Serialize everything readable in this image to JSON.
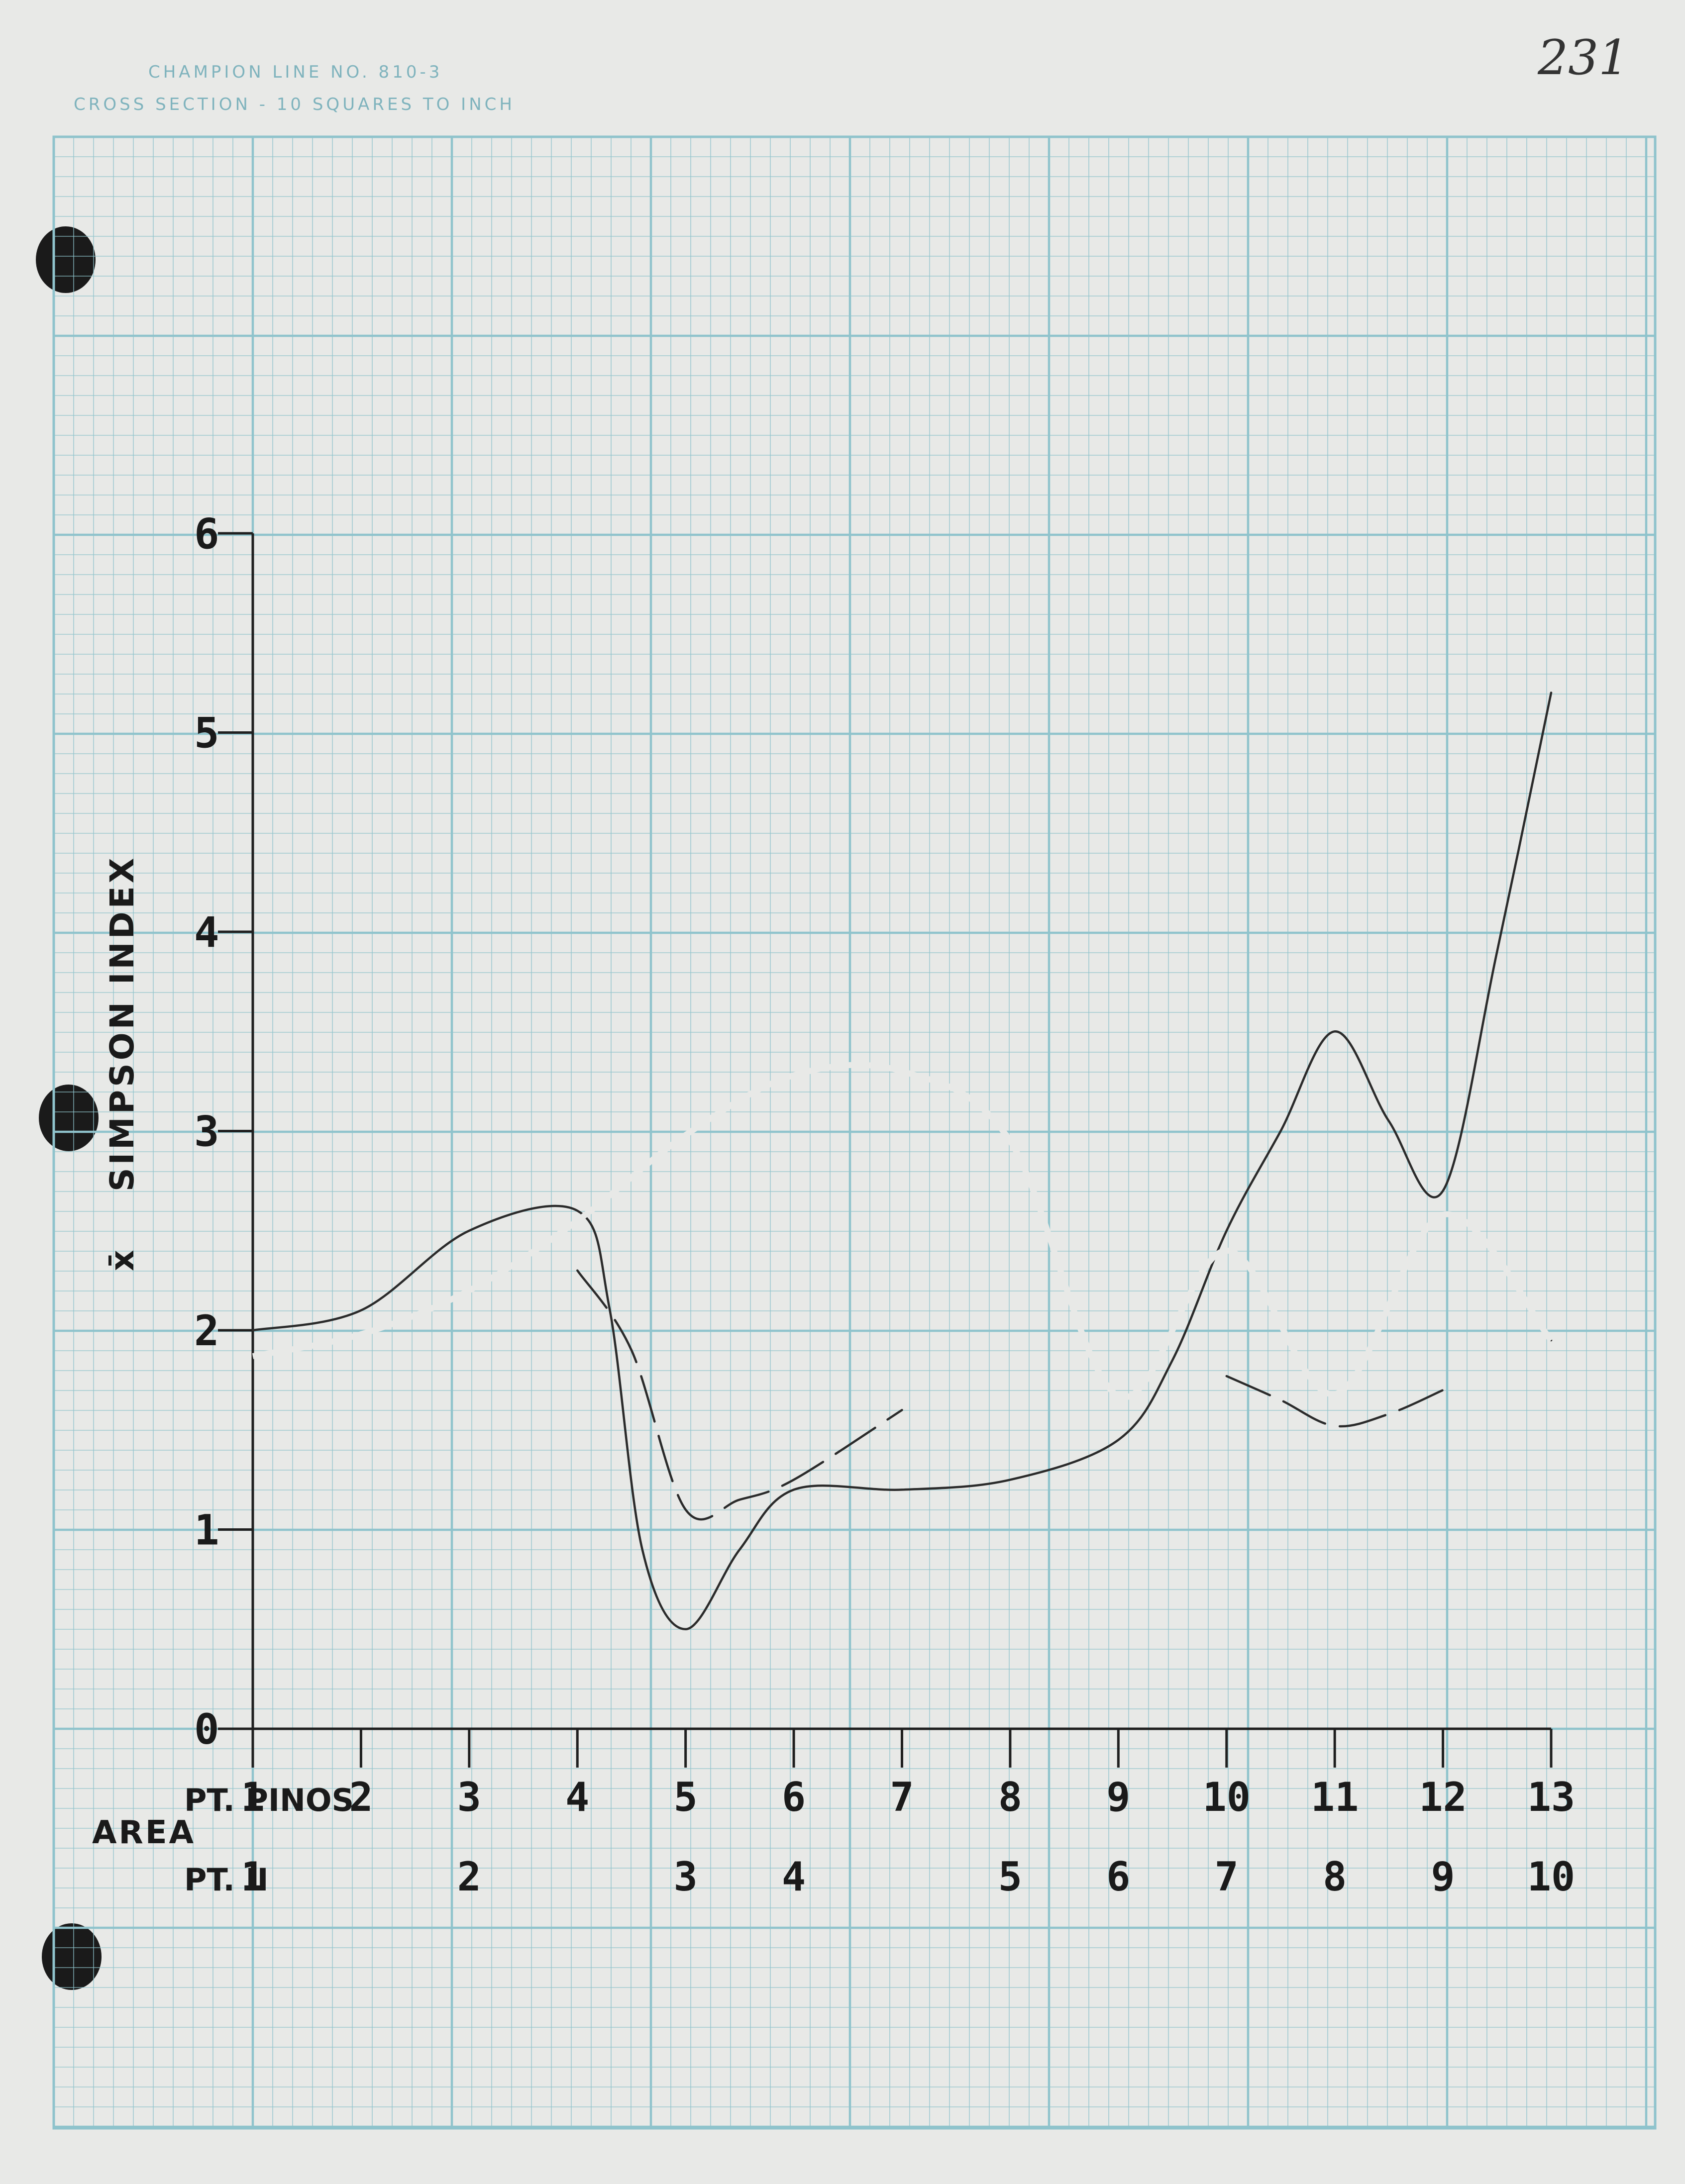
{
  "paper": {
    "header_line1": "CHAMPION LINE NO. 810-3",
    "header_line2": "CROSS SECTION - 10 SQUARES TO INCH",
    "page_number": "231"
  },
  "colors": {
    "grid": "#8fc3cc",
    "ink": "#1f1f1f",
    "paper": "#e8e9e7"
  },
  "chart_data": {
    "type": "line",
    "ylabel": "x̄ SIMPSON INDEX",
    "ylabel_bar": "x̄",
    "ylabel_text": "SIMPSON INDEX",
    "ylim": [
      0,
      6
    ],
    "yticks": [
      "0",
      "1",
      "2",
      "3",
      "4",
      "5",
      "6"
    ],
    "xlim": [
      0,
      13
    ],
    "xlabel": "AREA",
    "x_axis_rows": [
      {
        "label": "PT. PINOS",
        "ticks": [
          {
            "x": 1,
            "label": "1"
          },
          {
            "x": 2,
            "label": "2"
          },
          {
            "x": 3,
            "label": "3"
          },
          {
            "x": 4,
            "label": "4"
          },
          {
            "x": 5,
            "label": "5"
          },
          {
            "x": 6,
            "label": "6"
          },
          {
            "x": 7,
            "label": "7"
          },
          {
            "x": 8,
            "label": "8"
          },
          {
            "x": 9,
            "label": "9"
          },
          {
            "x": 10,
            "label": "10"
          },
          {
            "x": 11,
            "label": "11"
          },
          {
            "x": 12,
            "label": "12"
          },
          {
            "x": 13,
            "label": "13"
          }
        ]
      },
      {
        "label": "PT. II",
        "ticks": [
          {
            "x": 1,
            "label": "1"
          },
          {
            "x": 3,
            "label": "2"
          },
          {
            "x": 5,
            "label": "3"
          },
          {
            "x": 6,
            "label": "4"
          },
          {
            "x": 8,
            "label": "5"
          },
          {
            "x": 9,
            "label": "6"
          },
          {
            "x": 10,
            "label": "7"
          },
          {
            "x": 11,
            "label": "8"
          },
          {
            "x": 12,
            "label": "9"
          },
          {
            "x": 13,
            "label": "10"
          }
        ]
      }
    ],
    "series": [
      {
        "style": "solid",
        "points": [
          [
            1,
            2.0
          ],
          [
            2,
            2.1
          ],
          [
            3,
            2.5
          ],
          [
            4,
            2.6
          ],
          [
            4.3,
            2.1
          ],
          [
            4.6,
            0.9
          ],
          [
            5,
            0.5
          ],
          [
            5.5,
            0.9
          ],
          [
            6,
            1.2
          ],
          [
            7,
            1.2
          ],
          [
            8,
            1.25
          ],
          [
            9,
            1.45
          ],
          [
            9.5,
            1.85
          ],
          [
            10,
            2.5
          ],
          [
            10.5,
            3.0
          ],
          [
            11,
            3.5
          ],
          [
            11.5,
            3.05
          ],
          [
            12,
            2.7
          ],
          [
            12.5,
            3.9
          ],
          [
            13,
            5.2
          ]
        ]
      },
      {
        "style": "double",
        "points": [
          [
            1,
            1.87
          ],
          [
            2,
            1.98
          ],
          [
            3,
            2.2
          ],
          [
            4,
            2.55
          ],
          [
            5,
            2.98
          ],
          [
            6,
            3.28
          ],
          [
            7,
            3.3
          ],
          [
            8,
            2.95
          ],
          [
            9,
            1.67
          ],
          [
            10,
            2.4
          ],
          [
            11,
            1.68
          ],
          [
            12,
            2.58
          ],
          [
            13,
            1.95
          ]
        ]
      },
      {
        "style": "dashed",
        "points": [
          [
            4,
            2.3
          ],
          [
            4.5,
            1.9
          ],
          [
            5,
            1.1
          ],
          [
            5.5,
            1.15
          ],
          [
            6,
            1.25
          ],
          [
            7,
            1.6
          ]
        ]
      },
      {
        "style": "dashed",
        "points": [
          [
            10,
            1.77
          ],
          [
            10.5,
            1.65
          ],
          [
            11,
            1.52
          ],
          [
            11.5,
            1.58
          ],
          [
            12,
            1.7
          ]
        ]
      }
    ]
  }
}
